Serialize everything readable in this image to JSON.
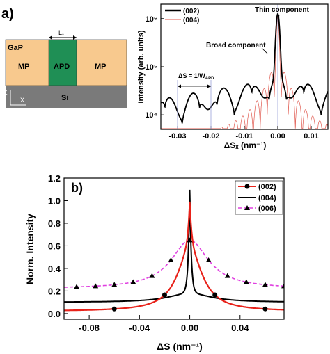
{
  "panel_a": {
    "label": "a)",
    "schematic": {
      "gap_label": "GaP",
      "mp_left_label": "MP",
      "apd_label": "APD",
      "mp_right_label": "MP",
      "si_label": "Si",
      "width_label": "Lₓ",
      "axis_z": "Z",
      "axis_x": "X",
      "colors": {
        "gap": "#f8c98e",
        "apd": "#1f8f55",
        "si": "#7a7a7a"
      }
    }
  },
  "panel_b": {
    "label": "b)"
  },
  "chart_data": [
    {
      "type": "line",
      "title": "",
      "xlabel": "ΔSₓ (nm⁻¹)",
      "ylabel": "Intensity (arb. units)",
      "xlim": [
        -0.035,
        0.015
      ],
      "ylim": [
        5000,
        2000000
      ],
      "yscale": "log",
      "x_ticks": [
        -0.03,
        -0.02,
        -0.01,
        0.0,
        0.01
      ],
      "x_tick_labels": [
        "-0.03",
        "-0.02",
        "-0.01",
        "0.00",
        "0.01"
      ],
      "y_tick_labels": [
        "10⁴",
        "10⁵",
        "10⁶"
      ],
      "legend": "top-left",
      "annotations": {
        "thin_component": "Thin component",
        "broad_component": "Broad component",
        "period": "ΔS = 1/W",
        "period_sub": "APD"
      },
      "series": [
        {
          "name": "(002)",
          "color": "#000000",
          "peak": 1200000,
          "fringe_period": 0.0104,
          "envelope_level": 20000
        },
        {
          "name": "(004)",
          "color": "#e0584e",
          "peak": 1000000,
          "fringe_period": 0.0021,
          "envelope_level": 3000
        }
      ]
    },
    {
      "type": "line",
      "title": "",
      "xlabel": "ΔS (nm⁻¹)",
      "ylabel": "Norm. Intensity",
      "xlim": [
        -0.1,
        0.075
      ],
      "ylim": [
        -0.05,
        1.2
      ],
      "x_ticks": [
        -0.08,
        -0.04,
        0.0,
        0.04
      ],
      "x_tick_labels": [
        "-0.08",
        "-0.04",
        "0.00",
        "0.04"
      ],
      "y_ticks": [
        0.0,
        0.2,
        0.4,
        0.6,
        0.8,
        1.0,
        1.2
      ],
      "y_tick_labels": [
        "0.0",
        "0.2",
        "0.4",
        "0.6",
        "0.8",
        "1.0",
        "1.2"
      ],
      "legend": "top-right",
      "series": [
        {
          "name": "(002)",
          "color": "#e8221a",
          "marker": "circle",
          "peak": 1.0,
          "baseline": 0.02,
          "points": [
            [
              -0.1,
              0.02
            ],
            [
              -0.06,
              0.03
            ],
            [
              -0.04,
              0.08
            ],
            [
              -0.03,
              0.13
            ],
            [
              -0.02,
              0.22
            ],
            [
              -0.01,
              0.38
            ],
            [
              -0.004,
              0.6
            ],
            [
              0.0,
              1.0
            ],
            [
              0.004,
              0.6
            ],
            [
              0.01,
              0.38
            ],
            [
              0.02,
              0.22
            ],
            [
              0.03,
              0.13
            ],
            [
              0.04,
              0.08
            ],
            [
              0.06,
              0.03
            ],
            [
              0.075,
              0.02
            ]
          ]
        },
        {
          "name": "(004)",
          "color": "#000000",
          "marker": "none",
          "peak": 1.12,
          "baseline": 0.1,
          "points": [
            [
              -0.1,
              0.1
            ],
            [
              -0.04,
              0.13
            ],
            [
              -0.02,
              0.16
            ],
            [
              -0.01,
              0.22
            ],
            [
              -0.004,
              0.35
            ],
            [
              0.0,
              1.12
            ],
            [
              0.004,
              0.35
            ],
            [
              0.01,
              0.22
            ],
            [
              0.02,
              0.16
            ],
            [
              0.04,
              0.13
            ],
            [
              0.075,
              0.1
            ]
          ]
        },
        {
          "name": "(006)",
          "color": "#e040e0",
          "marker": "triangle",
          "peak": 0.65,
          "baseline": 0.22,
          "points": [
            [
              -0.1,
              0.22
            ],
            [
              -0.06,
              0.25
            ],
            [
              -0.04,
              0.3
            ],
            [
              -0.02,
              0.4
            ],
            [
              -0.01,
              0.5
            ],
            [
              0.0,
              0.65
            ],
            [
              0.01,
              0.5
            ],
            [
              0.02,
              0.4
            ],
            [
              0.04,
              0.3
            ],
            [
              0.06,
              0.25
            ],
            [
              0.075,
              0.22
            ]
          ]
        }
      ]
    }
  ]
}
